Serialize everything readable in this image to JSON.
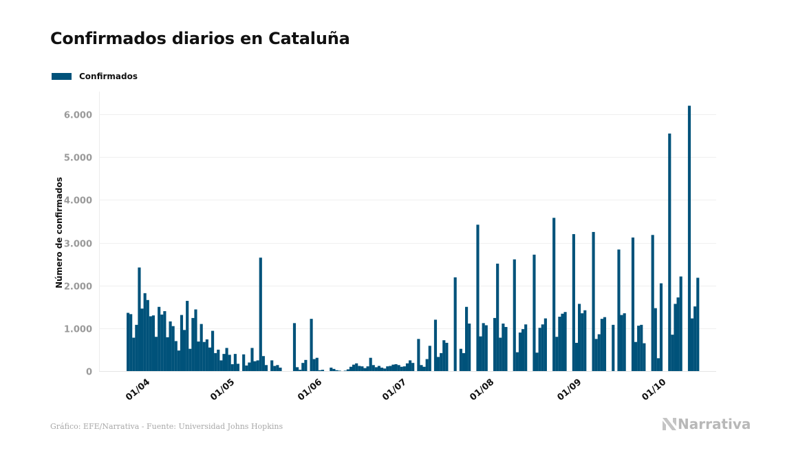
{
  "header": {
    "title": "Confirmados diarios en Cataluña"
  },
  "legend": {
    "items": [
      {
        "label": "Confirmados",
        "color": "#00527a"
      }
    ]
  },
  "footer": {
    "source": "Gráfico: EFE/Narrativa - Fuente: Universidad Johns Hopkins",
    "brand": "Narrativa",
    "brand_icon": "narrativa-logo-icon"
  },
  "chart_data": {
    "type": "bar",
    "title": "Confirmados diarios en Cataluña",
    "xlabel": "",
    "ylabel": "Número de confirmados",
    "ylim": [
      0,
      6000
    ],
    "yticks": [
      0,
      1000,
      2000,
      3000,
      4000,
      5000,
      6000
    ],
    "ytick_labels": [
      "0",
      "1.000",
      "2.000",
      "3.000",
      "4.000",
      "5.000",
      "6.000"
    ],
    "xticks": [
      {
        "label": "01/04",
        "index": 5
      },
      {
        "label": "01/05",
        "index": 35
      },
      {
        "label": "01/06",
        "index": 66
      },
      {
        "label": "01/07",
        "index": 96
      },
      {
        "label": "01/08",
        "index": 127
      },
      {
        "label": "01/09",
        "index": 158
      },
      {
        "label": "01/10",
        "index": 188
      }
    ],
    "grid": true,
    "legend_position": "top-left",
    "color": "#00527a",
    "start_date": "27/03",
    "series": [
      {
        "name": "Confirmados",
        "values": [
          1360,
          1330,
          780,
          1080,
          2420,
          1460,
          1820,
          1660,
          1280,
          1300,
          800,
          1500,
          1320,
          1400,
          790,
          1160,
          1050,
          700,
          480,
          1310,
          960,
          1640,
          520,
          1240,
          1440,
          690,
          1100,
          680,
          740,
          550,
          940,
          420,
          500,
          250,
          400,
          540,
          380,
          160,
          400,
          170,
          0,
          390,
          130,
          200,
          540,
          230,
          250,
          2650,
          350,
          140,
          0,
          250,
          120,
          140,
          80,
          0,
          0,
          0,
          0,
          1120,
          90,
          30,
          190,
          260,
          0,
          1220,
          280,
          310,
          20,
          30,
          0,
          0,
          80,
          50,
          20,
          10,
          0,
          10,
          40,
          100,
          150,
          180,
          120,
          110,
          70,
          110,
          310,
          140,
          90,
          120,
          80,
          60,
          110,
          120,
          150,
          160,
          140,
          100,
          110,
          180,
          250,
          190,
          0,
          750,
          140,
          100,
          280,
          590,
          0,
          1200,
          330,
          420,
          720,
          660,
          0,
          0,
          2190,
          0,
          520,
          420,
          1500,
          1110,
          0,
          0,
          3420,
          810,
          1120,
          1070,
          0,
          0,
          1240,
          2510,
          780,
          1110,
          1030,
          0,
          0,
          2610,
          440,
          900,
          980,
          1090,
          0,
          0,
          2720,
          430,
          1010,
          1090,
          1230,
          0,
          0,
          3580,
          800,
          1270,
          1340,
          1380,
          0,
          0,
          3200,
          660,
          1570,
          1350,
          1420,
          0,
          0,
          3250,
          750,
          860,
          1220,
          1260,
          0,
          0,
          1080,
          0,
          2840,
          1310,
          1350,
          0,
          0,
          3120,
          680,
          1060,
          1080,
          650,
          0,
          0,
          3180,
          1470,
          300,
          2050,
          0,
          0,
          5550,
          850,
          1570,
          1720,
          2210,
          0,
          0,
          6200,
          1230,
          1510,
          2180
        ]
      }
    ]
  }
}
